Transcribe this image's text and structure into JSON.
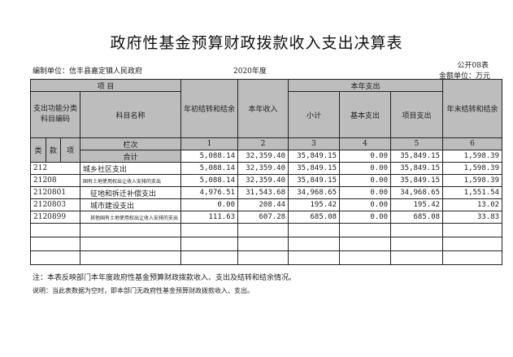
{
  "title": "政府性基金预算财政拨款收入支出决算表",
  "unit": "编制单位：信丰县嘉定镇人民政府",
  "year": "2020年度",
  "table_no": "公开08表",
  "currency": "金额单位：万元",
  "header": {
    "item": "项    目",
    "func_code": "支出功能分类科目编码",
    "name": "科目名称",
    "begin": "年初结转和结余",
    "income": "本年收入",
    "expense": "本年支出",
    "subtotal": "小计",
    "basic": "基本支出",
    "project": "项目支出",
    "end": "年末结转和结余",
    "lei": "类",
    "kuan": "款",
    "xiang": "项",
    "col_row": "栏次",
    "cols": [
      "1",
      "2",
      "3",
      "4",
      "5",
      "6"
    ],
    "total": "合计"
  },
  "total": [
    "5,088.14",
    "32,359.40",
    "35,849.15",
    "0.00",
    "35,849.15",
    "1,598.39"
  ],
  "rows": [
    {
      "code": "212",
      "name": "城乡社区支出",
      "v": [
        "5,088.14",
        "32,359.40",
        "35,849.15",
        "0.00",
        "35,849.15",
        "1,598.39"
      ]
    },
    {
      "code": "21208",
      "name": "国有土地使用权出让收入安排的支出",
      "v": [
        "5,088.14",
        "32,359.40",
        "35,849.15",
        "0.00",
        "35,849.15",
        "1,598.39"
      ]
    },
    {
      "code": "2120801",
      "name": "征地和拆迁补偿支出",
      "v": [
        "4,976.51",
        "31,543.68",
        "34,968.65",
        "0.00",
        "34,968.65",
        "1,551.54"
      ]
    },
    {
      "code": "2120803",
      "name": "城市建设支出",
      "v": [
        "0.00",
        "208.44",
        "195.42",
        "0.00",
        "195.42",
        "13.02"
      ]
    },
    {
      "code": "2120899",
      "name": "其他国有土地使用权出让收入安排的支出",
      "v": [
        "111.63",
        "607.28",
        "685.08",
        "0.00",
        "685.08",
        "33.83"
      ]
    }
  ],
  "note": "注：本表反映部门本年度政府性基金预算财政拨款收入、支出及结转和结余情况。",
  "explain": "说明：当此表数据为空时，即本部门无政府性基金预算财政拨款收入、支出。"
}
